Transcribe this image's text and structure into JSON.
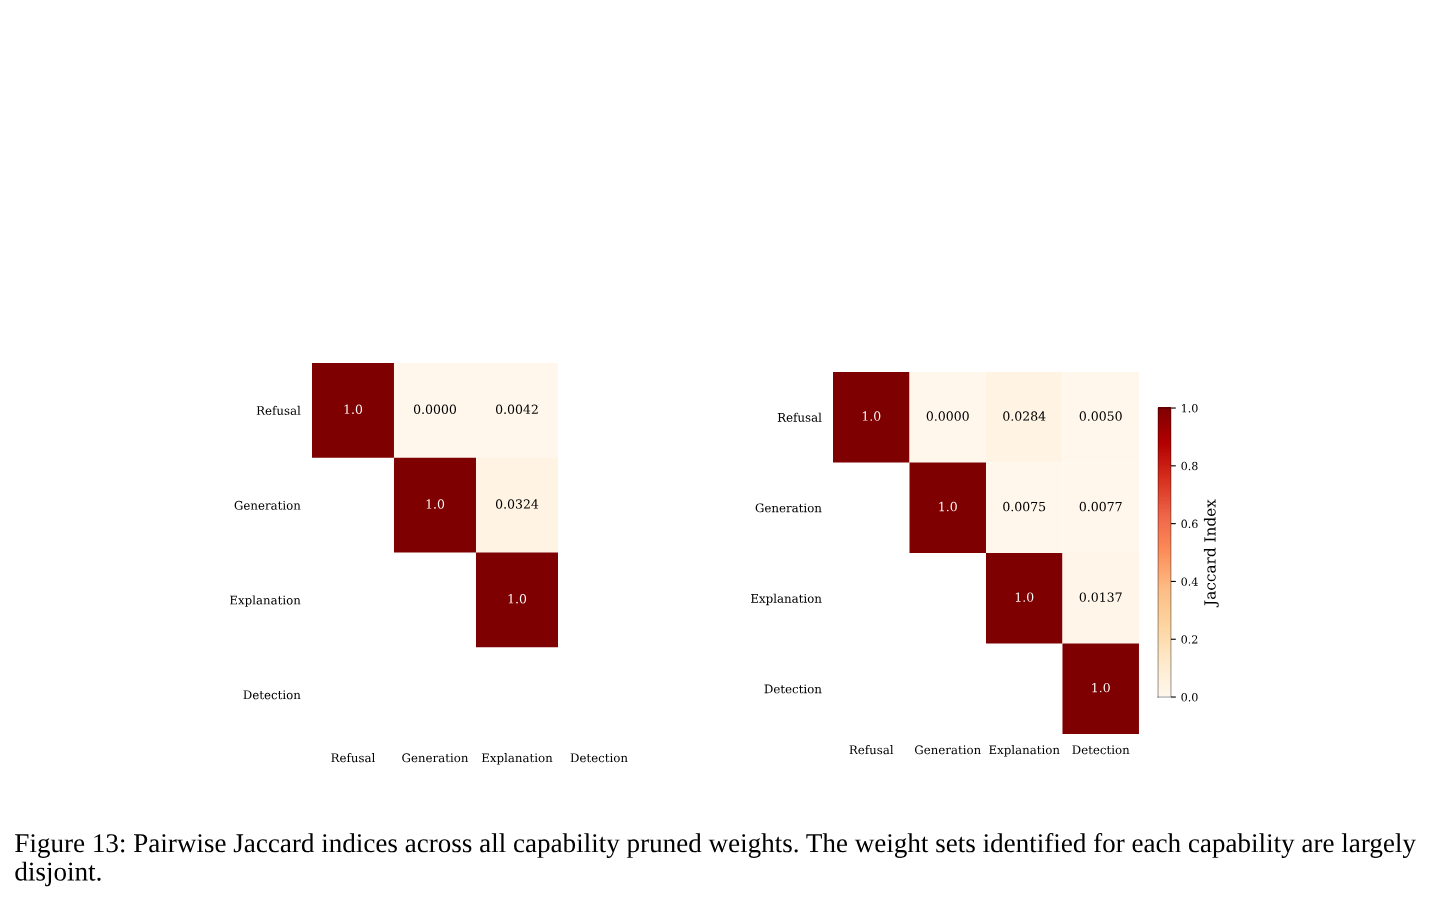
{
  "chart_data": [
    {
      "type": "heatmap",
      "categories": [
        "Refusal",
        "Generation",
        "Explanation",
        "Detection"
      ],
      "y_categories": [
        "Refusal",
        "Generation",
        "Explanation",
        "Detection"
      ],
      "cells": [
        [
          1.0,
          0.0,
          0.0042,
          null
        ],
        [
          null,
          1.0,
          0.0324,
          null
        ],
        [
          null,
          null,
          1.0,
          null
        ],
        [
          null,
          null,
          null,
          null
        ]
      ],
      "cell_labels": [
        [
          "1.0",
          "0.0000",
          "0.0042",
          null
        ],
        [
          null,
          "1.0",
          "0.0324",
          null
        ],
        [
          null,
          null,
          "1.0",
          null
        ],
        [
          null,
          null,
          null,
          null
        ]
      ],
      "annotations": [
        "Figure 13: Pairwise Jaccard indices across all capability pruned weights. The weight sets identified for each capability are largely disjoint."
      ]
    },
    {
      "type": "heatmap",
      "categories": [
        "Refusal",
        "Generation",
        "Explanation",
        "Detection"
      ],
      "y_categories": [
        "Refusal",
        "Generation",
        "Explanation",
        "Detection"
      ],
      "cells": [
        [
          1.0,
          0.0,
          0.0284,
          0.005
        ],
        [
          null,
          1.0,
          0.0075,
          0.0077
        ],
        [
          null,
          null,
          1.0,
          0.0137
        ],
        [
          null,
          null,
          null,
          1.0
        ]
      ],
      "cell_labels": [
        [
          "1.0",
          "0.0000",
          "0.0284",
          "0.0050"
        ],
        [
          null,
          "1.0",
          "0.0075",
          "0.0077"
        ],
        [
          null,
          null,
          "1.0",
          "0.0137"
        ],
        [
          null,
          null,
          null,
          "1.0"
        ]
      ],
      "clim": [
        0,
        1
      ],
      "cticks": [
        {
          "value": 0,
          "label": "0.0"
        },
        {
          "value": 0.2,
          "label": "0.2"
        },
        {
          "value": 0.4,
          "label": "0.4"
        },
        {
          "value": 0.6,
          "label": "0.6"
        },
        {
          "value": 0.8,
          "label": "0.8"
        },
        {
          "value": 1,
          "label": "1.0"
        }
      ],
      "clabel": "Jaccard Index"
    }
  ]
}
